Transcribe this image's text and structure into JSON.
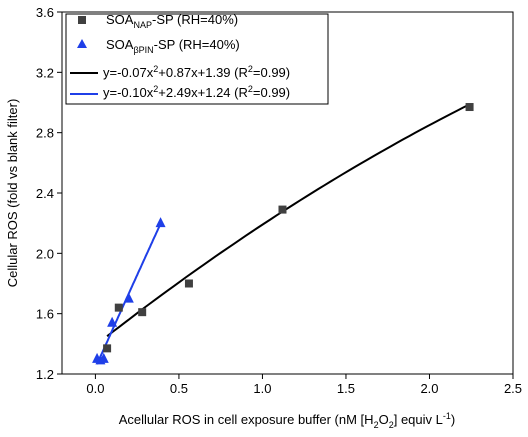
{
  "chart_data": {
    "type": "scatter",
    "xlabel": "Acellular ROS in cell exposure buffer (nM [H2O2] equiv L-1)",
    "ylabel": "Cellular ROS (fold vs blank filter)",
    "xlim": [
      -0.2,
      2.5
    ],
    "ylim": [
      1.2,
      3.6
    ],
    "xticks": [
      0.0,
      0.5,
      1.0,
      1.5,
      2.0,
      2.5
    ],
    "xtick_labels": [
      "0.0",
      "0.5",
      "1.0",
      "1.5",
      "2.0",
      "2.5"
    ],
    "yticks": [
      1.2,
      1.6,
      2.0,
      2.4,
      2.8,
      3.2,
      3.6
    ],
    "ytick_labels": [
      "1.2",
      "1.6",
      "2.0",
      "2.4",
      "2.8",
      "3.2",
      "3.6"
    ],
    "grid": false,
    "legend_position": "top-left",
    "series": [
      {
        "name": "SOA_NAP-SP (RH=40%)",
        "name_main": "SOA",
        "name_sub": "NAP",
        "name_rest": "-SP (RH=40%)",
        "marker": "square",
        "color": "#404040",
        "points": [
          {
            "x": 0.07,
            "y": 1.37
          },
          {
            "x": 0.14,
            "y": 1.64
          },
          {
            "x": 0.28,
            "y": 1.61
          },
          {
            "x": 0.56,
            "y": 1.8
          },
          {
            "x": 1.12,
            "y": 2.29
          },
          {
            "x": 2.24,
            "y": 2.97
          }
        ]
      },
      {
        "name": "SOA_βPIN-SP (RH=40%)",
        "name_main": "SOA",
        "name_sub": "βPIN",
        "name_rest": "-SP (RH=40%)",
        "marker": "triangle",
        "color": "#1f3fe8",
        "points": [
          {
            "x": 0.01,
            "y": 1.3
          },
          {
            "x": 0.03,
            "y": 1.29
          },
          {
            "x": 0.05,
            "y": 1.3
          },
          {
            "x": 0.1,
            "y": 1.54
          },
          {
            "x": 0.2,
            "y": 1.7
          },
          {
            "x": 0.39,
            "y": 2.2
          }
        ]
      }
    ],
    "fits": [
      {
        "label": "y=-0.07x2+0.87x+1.39 (R2=0.99)",
        "label_parts": [
          "y=-0.07x",
          "2",
          "+0.87x+1.39 (R",
          "2",
          "=0.99)"
        ],
        "coefficients": {
          "a": -0.07,
          "b": 0.87,
          "c": 1.39
        },
        "x_range": [
          0.07,
          2.24
        ],
        "color": "#000000"
      },
      {
        "label": "y=-0.10x2+2.49x+1.24 (R2=0.99)",
        "label_parts": [
          "y=-0.10x",
          "2",
          "+2.49x+1.24 (R",
          "2",
          "=0.99)"
        ],
        "coefficients": {
          "a": -0.1,
          "b": 2.49,
          "c": 1.24
        },
        "x_range": [
          0.01,
          0.39
        ],
        "color": "#1f3fe8"
      }
    ]
  }
}
